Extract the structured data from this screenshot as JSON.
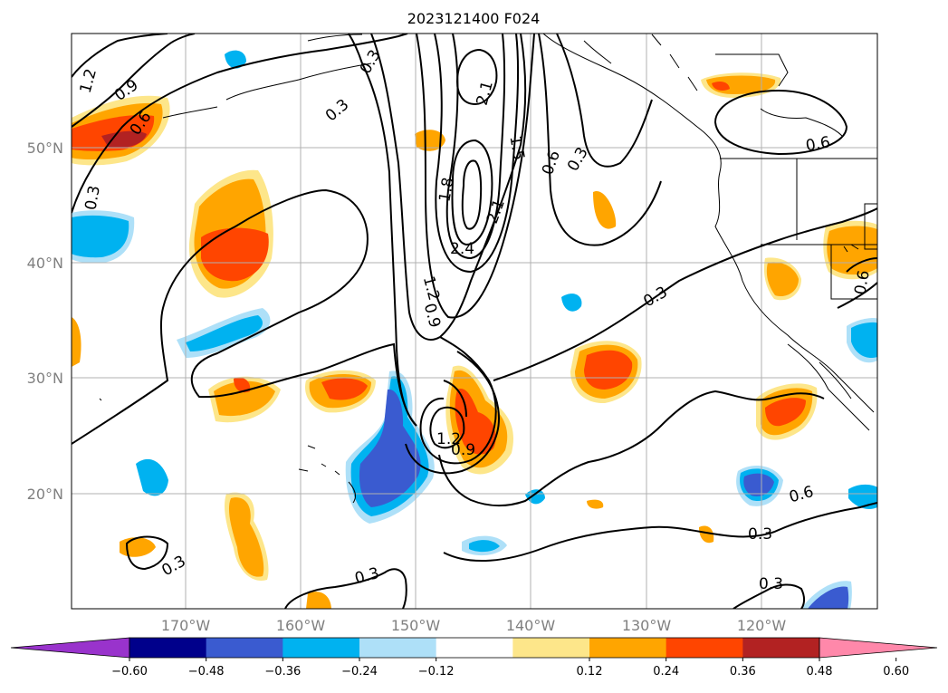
{
  "title": "2023121400 F024",
  "map": {
    "lon_ticks": [
      "170°W",
      "160°W",
      "150°W",
      "140°W",
      "130°W",
      "120°W"
    ],
    "lat_ticks": [
      "50°N",
      "40°N",
      "30°N",
      "20°N"
    ],
    "extent": {
      "lon_min": -180,
      "lon_max": -110,
      "lat_min": 10,
      "lat_max": 60
    },
    "gridlines": true
  },
  "colorbar": {
    "ticks": [
      "−0.60",
      "−0.48",
      "−0.36",
      "−0.24",
      "−0.12",
      "0.12",
      "0.24",
      "0.36",
      "0.48",
      "0.60"
    ],
    "colors": [
      "#9933cc",
      "#00008b",
      "#3a5bd0",
      "#00b2f0",
      "#aee0f8",
      "#ffffff",
      "#fde68a",
      "#ffa500",
      "#ff4500",
      "#b22222",
      "#ff88aa"
    ],
    "extend": "both"
  },
  "contour_labels": [
    "1.2",
    "0.9",
    "0.6",
    "0.3",
    "0.3",
    "0.3",
    "2.1",
    "1.5",
    "0.6",
    "0.3",
    "1.8",
    "2.1",
    "2.4",
    "1.2",
    "0.9",
    "0.3",
    "0.6",
    "0.6",
    "1.2",
    "0.9",
    "0.6",
    "0.3",
    "0.3",
    "0.3"
  ]
}
